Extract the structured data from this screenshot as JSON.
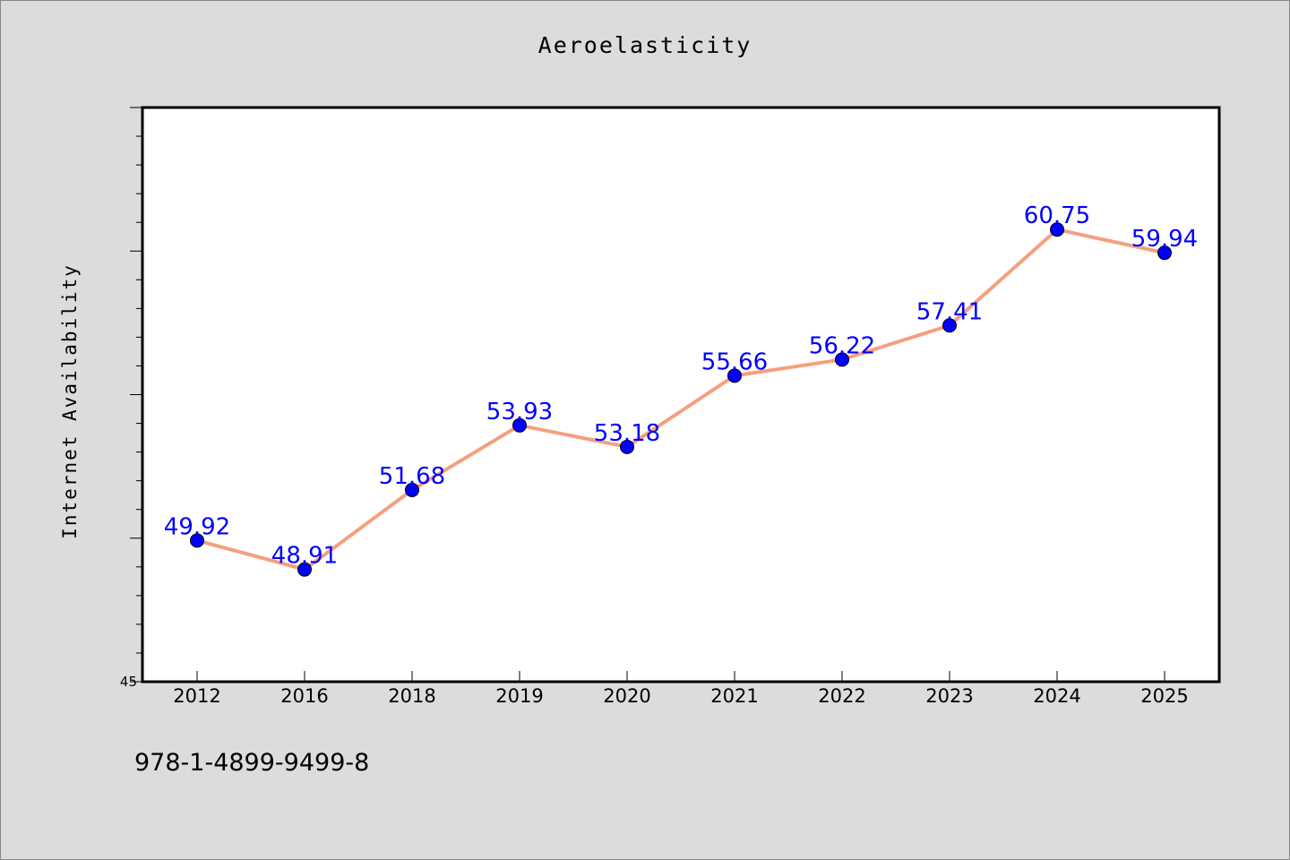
{
  "chart_data": {
    "type": "line",
    "title": "Aeroelasticity",
    "ylabel": "Internet Availability",
    "xlabel": "",
    "categories": [
      "2012",
      "2016",
      "2018",
      "2019",
      "2020",
      "2021",
      "2022",
      "2023",
      "2024",
      "2025"
    ],
    "values": [
      49.92,
      48.91,
      51.68,
      53.93,
      53.18,
      55.66,
      56.22,
      57.41,
      60.75,
      59.94
    ],
    "data_labels": [
      "49.92",
      "48.91",
      "51.68",
      "53.93",
      "53.18",
      "55.66",
      "56.22",
      "57.41",
      "60.75",
      "59.94"
    ],
    "ylim": [
      45,
      65
    ],
    "y_tick_labels": [
      "45"
    ],
    "grid": false,
    "line_color": "#f4a07e",
    "marker_color": "#0000ff",
    "label_color": "#0000ff"
  },
  "footer": {
    "code": "978-1-4899-9499-8"
  }
}
